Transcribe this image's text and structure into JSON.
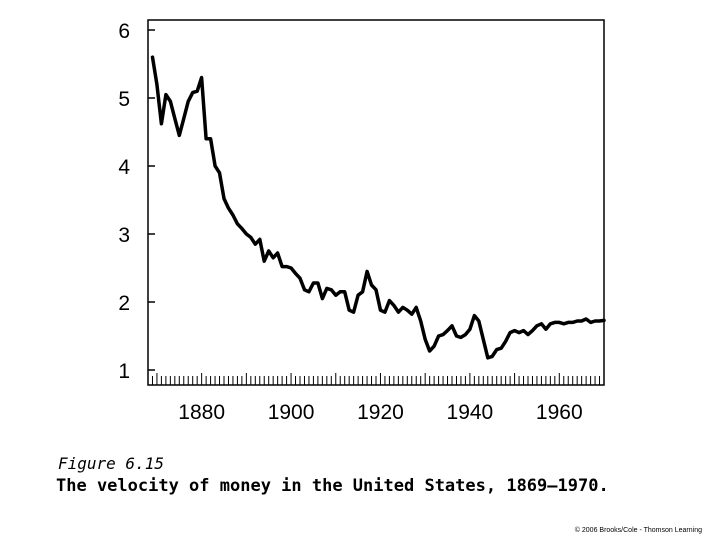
{
  "figure": {
    "number": "Figure 6.15",
    "caption": "The velocity of money in the United States, 1869–1970.",
    "copyright": "© 2006 Brooks/Cole - Thomson Learning"
  },
  "chart_data": {
    "type": "line",
    "title": "",
    "xlabel": "",
    "ylabel": "",
    "xlim": [
      1868,
      1970
    ],
    "ylim": [
      1,
      6
    ],
    "xticks": [
      1880,
      1900,
      1920,
      1940,
      1960
    ],
    "yticks": [
      1,
      2,
      3,
      4,
      5,
      6
    ],
    "grid": false,
    "legend": "none",
    "line_color": "#000000",
    "series": [
      {
        "x": [
          1869,
          1870,
          1871,
          1872,
          1873,
          1874,
          1875,
          1876,
          1877,
          1878,
          1879,
          1880,
          1881,
          1882,
          1883,
          1884,
          1885,
          1886,
          1887,
          1888,
          1889,
          1890,
          1891,
          1892,
          1893,
          1894,
          1895,
          1896,
          1897,
          1898,
          1899,
          1900,
          1901,
          1902,
          1903,
          1904,
          1905,
          1906,
          1907,
          1908,
          1909,
          1910,
          1911,
          1912,
          1913,
          1914,
          1915,
          1916,
          1917,
          1918,
          1919,
          1920,
          1921,
          1922,
          1923,
          1924,
          1925,
          1926,
          1927,
          1928,
          1929,
          1930,
          1931,
          1932,
          1933,
          1934,
          1935,
          1936,
          1937,
          1938,
          1939,
          1940,
          1941,
          1942,
          1943,
          1944,
          1945,
          1946,
          1947,
          1948,
          1949,
          1950,
          1951,
          1952,
          1953,
          1954,
          1955,
          1956,
          1957,
          1958,
          1959,
          1960,
          1961,
          1962,
          1963,
          1964,
          1965,
          1966,
          1967,
          1968,
          1969,
          1970
        ],
        "values": [
          5.6,
          5.2,
          4.62,
          5.05,
          4.95,
          4.7,
          4.45,
          4.7,
          4.95,
          5.08,
          5.1,
          5.3,
          4.4,
          4.4,
          4.0,
          3.9,
          3.52,
          3.38,
          3.28,
          3.15,
          3.08,
          3.0,
          2.95,
          2.85,
          2.92,
          2.6,
          2.75,
          2.65,
          2.72,
          2.52,
          2.52,
          2.5,
          2.42,
          2.35,
          2.18,
          2.15,
          2.28,
          2.28,
          2.05,
          2.2,
          2.18,
          2.1,
          2.15,
          2.15,
          1.88,
          1.85,
          2.1,
          2.15,
          2.45,
          2.25,
          2.18,
          1.88,
          1.85,
          2.02,
          1.95,
          1.85,
          1.92,
          1.88,
          1.82,
          1.92,
          1.72,
          1.45,
          1.28,
          1.35,
          1.5,
          1.52,
          1.58,
          1.65,
          1.5,
          1.48,
          1.52,
          1.6,
          1.8,
          1.72,
          1.45,
          1.18,
          1.2,
          1.3,
          1.32,
          1.42,
          1.55,
          1.58,
          1.55,
          1.58,
          1.52,
          1.58,
          1.65,
          1.68,
          1.6,
          1.68,
          1.7,
          1.7,
          1.68,
          1.7,
          1.7,
          1.72,
          1.72,
          1.75,
          1.7,
          1.72,
          1.72,
          1.73
        ]
      }
    ]
  }
}
